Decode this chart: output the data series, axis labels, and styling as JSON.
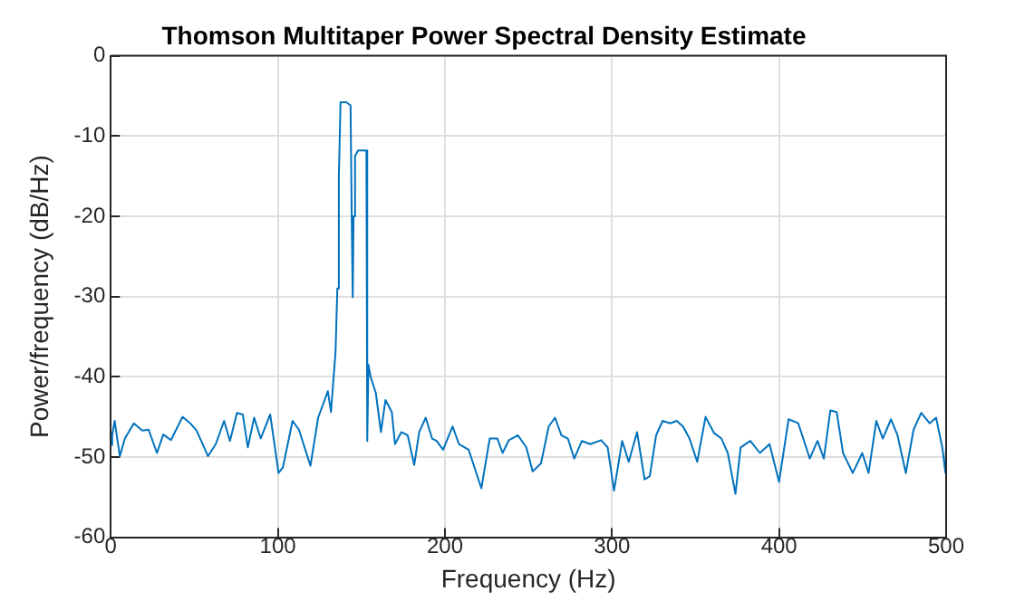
{
  "chart_data": {
    "type": "line",
    "title": "Thomson Multitaper Power Spectral Density Estimate",
    "xlabel": "Frequency (Hz)",
    "ylabel": "Power/frequency (dB/Hz)",
    "xlim": [
      0,
      500
    ],
    "xticks": [
      0,
      100,
      200,
      300,
      400,
      500
    ],
    "ylim": [
      -60,
      0
    ],
    "yticks": [
      -60,
      -50,
      -40,
      -30,
      -20,
      -10,
      0
    ],
    "grid": true,
    "marker": "none",
    "line_style": "solid",
    "x": [
      0,
      0.8,
      2.3,
      5.4,
      8.4,
      13.8,
      18.8,
      22.6,
      27.6,
      31.4,
      36,
      42.9,
      47.5,
      51.3,
      58.2,
      62.8,
      67.8,
      71.3,
      75.5,
      79,
      82,
      85.8,
      89.7,
      95.4,
      100.4,
      103,
      108.8,
      112.6,
      119.5,
      124.1,
      129.9,
      131.8,
      133,
      134.5,
      135.6,
      136.5,
      137.5,
      141,
      143.5,
      144.2,
      144.8,
      145.3,
      146.2,
      148,
      153,
      153.5,
      154.2,
      155.5,
      158.6,
      161.7,
      164.4,
      168.2,
      170.1,
      173.9,
      177.7,
      181.6,
      184.6,
      188.5,
      192.3,
      195,
      198.9,
      204.6,
      208.4,
      214.2,
      221.8,
      226.8,
      231.4,
      234.5,
      238.3,
      243.7,
      248.7,
      252.5,
      257.5,
      262.1,
      265.9,
      269.7,
      273.6,
      277.4,
      282,
      287,
      293.5,
      297.4,
      301.2,
      306.1,
      310,
      315,
      319.5,
      322.6,
      326.4,
      330.3,
      334.9,
      338.7,
      342.5,
      346.4,
      351,
      356,
      361,
      365.5,
      369.3,
      373.9,
      377,
      382.8,
      388.5,
      394.3,
      400,
      405.7,
      411.5,
      418.4,
      423,
      426.8,
      430.7,
      434.5,
      438.3,
      444.1,
      449.8,
      453.6,
      458.2,
      462.1,
      467,
      470.9,
      475.9,
      480.5,
      485.1,
      490.1,
      494,
      497.7,
      499.6,
      500
    ],
    "series": [
      {
        "color": "#0072bd",
        "values": [
          -48.5,
          -47.3,
          -45.5,
          -49.9,
          -47.7,
          -45.8,
          -46.7,
          -46.6,
          -49.5,
          -47.2,
          -47.9,
          -45,
          -45.8,
          -46.7,
          -49.9,
          -48.4,
          -45.5,
          -48,
          -44.5,
          -44.7,
          -48.8,
          -45.1,
          -47.7,
          -44.7,
          -52,
          -51.3,
          -45.5,
          -46.6,
          -51.1,
          -45.1,
          -41.8,
          -44.4,
          -41,
          -37,
          -29,
          -15,
          -5.8,
          -5.8,
          -6.2,
          -20,
          -30.1,
          -20,
          -12.5,
          -11.8,
          -11.8,
          -48,
          -38.5,
          -40,
          -42,
          -46.9,
          -42.9,
          -44.4,
          -48.4,
          -46.9,
          -47.3,
          -51,
          -46.9,
          -45.1,
          -47.7,
          -48,
          -49.1,
          -46.2,
          -48.4,
          -49.1,
          -53.9,
          -47.7,
          -47.7,
          -49.5,
          -47.9,
          -47.3,
          -48.8,
          -51.8,
          -50.8,
          -46.2,
          -45.1,
          -47.3,
          -47.7,
          -50.2,
          -48,
          -48.4,
          -47.9,
          -48.8,
          -54.2,
          -48,
          -50.6,
          -46.9,
          -52.8,
          -52.4,
          -47.3,
          -45.5,
          -45.8,
          -45.5,
          -46.2,
          -47.7,
          -50.6,
          -45,
          -47,
          -47.7,
          -49.5,
          -54.6,
          -48.8,
          -48,
          -49.5,
          -48.4,
          -53.1,
          -45.3,
          -45.8,
          -50.2,
          -48,
          -50.2,
          -44.2,
          -44.4,
          -49.5,
          -52,
          -49.5,
          -52,
          -45.5,
          -47.7,
          -45.3,
          -47.3,
          -52,
          -46.6,
          -44.5,
          -45.8,
          -45.1,
          -48.8,
          -52,
          -48.4
        ]
      }
    ]
  }
}
